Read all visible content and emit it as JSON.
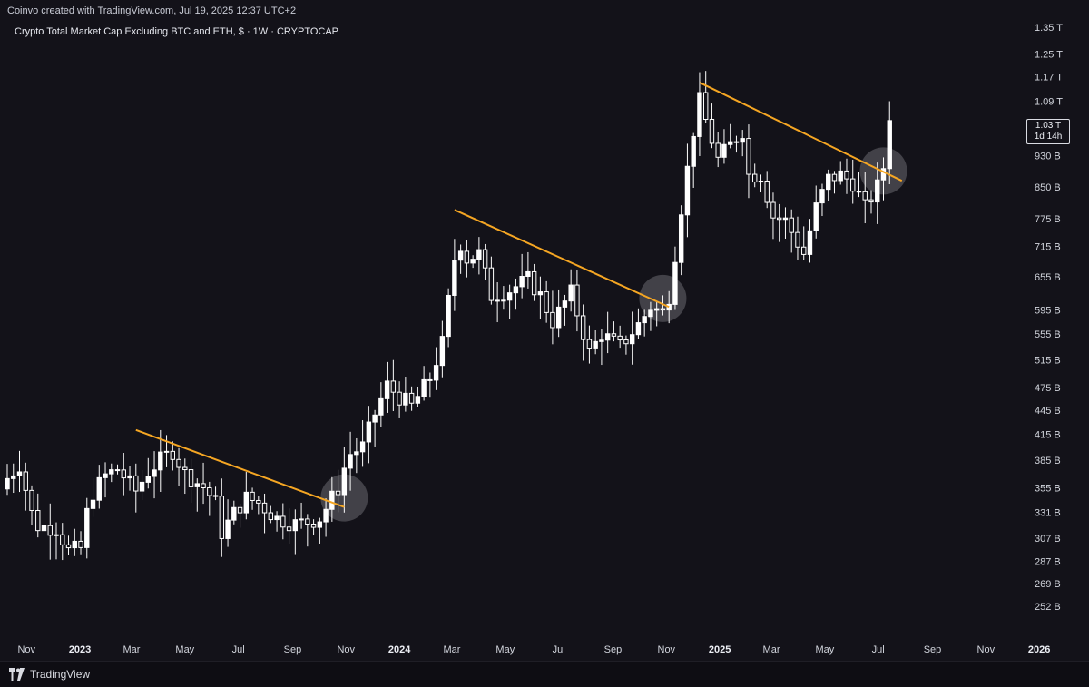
{
  "header": {
    "credit": "Coinvo created with TradingView.com, Jul 19, 2025 12:37 UTC+2",
    "title": "Crypto Total Market Cap Excluding BTC and ETH, $ · 1W · CRYPTOCAP"
  },
  "price_label": {
    "value": "1.03 T",
    "countdown": "1d 14h"
  },
  "footer": {
    "brand": "TradingView"
  },
  "colors": {
    "background": "#131219",
    "candle": "#ffffff",
    "trendline": "#f5a623",
    "highlight": "#9a9aa0"
  },
  "chart_data": {
    "type": "candlestick",
    "title": "Crypto Total Market Cap Excluding BTC and ETH, $ · 1W · CRYPTOCAP",
    "y_scale": "log",
    "y_ticks": [
      {
        "label": "1.35 T",
        "value": 1350
      },
      {
        "label": "1.25 T",
        "value": 1250
      },
      {
        "label": "1.17 T",
        "value": 1170
      },
      {
        "label": "1.09 T",
        "value": 1090
      },
      {
        "label": "930 B",
        "value": 930
      },
      {
        "label": "850 B",
        "value": 850
      },
      {
        "label": "775 B",
        "value": 775
      },
      {
        "label": "715 B",
        "value": 715
      },
      {
        "label": "655 B",
        "value": 655
      },
      {
        "label": "595 B",
        "value": 595
      },
      {
        "label": "555 B",
        "value": 555
      },
      {
        "label": "515 B",
        "value": 515
      },
      {
        "label": "475 B",
        "value": 475
      },
      {
        "label": "445 B",
        "value": 445
      },
      {
        "label": "415 B",
        "value": 415
      },
      {
        "label": "385 B",
        "value": 385
      },
      {
        "label": "355 B",
        "value": 355
      },
      {
        "label": "331 B",
        "value": 331
      },
      {
        "label": "307 B",
        "value": 307
      },
      {
        "label": "287 B",
        "value": 287
      },
      {
        "label": "269 B",
        "value": 269
      },
      {
        "label": "252 B",
        "value": 252
      }
    ],
    "x_ticks": [
      {
        "label": "Nov",
        "date": "2022-11-01",
        "year": false
      },
      {
        "label": "2023",
        "date": "2023-01-01",
        "year": true
      },
      {
        "label": "Mar",
        "date": "2023-03-01",
        "year": false
      },
      {
        "label": "May",
        "date": "2023-05-01",
        "year": false
      },
      {
        "label": "Jul",
        "date": "2023-07-01",
        "year": false
      },
      {
        "label": "Sep",
        "date": "2023-09-01",
        "year": false
      },
      {
        "label": "Nov",
        "date": "2023-11-01",
        "year": false
      },
      {
        "label": "2024",
        "date": "2024-01-01",
        "year": true
      },
      {
        "label": "Mar",
        "date": "2024-03-01",
        "year": false
      },
      {
        "label": "May",
        "date": "2024-05-01",
        "year": false
      },
      {
        "label": "Jul",
        "date": "2024-07-01",
        "year": false
      },
      {
        "label": "Sep",
        "date": "2024-09-01",
        "year": false
      },
      {
        "label": "Nov",
        "date": "2024-11-01",
        "year": false
      },
      {
        "label": "2025",
        "date": "2025-01-01",
        "year": true
      },
      {
        "label": "Mar",
        "date": "2025-03-01",
        "year": false
      },
      {
        "label": "May",
        "date": "2025-05-01",
        "year": false
      },
      {
        "label": "Jul",
        "date": "2025-07-01",
        "year": false
      },
      {
        "label": "Sep",
        "date": "2025-09-01",
        "year": false
      },
      {
        "label": "Nov",
        "date": "2025-11-01",
        "year": false
      },
      {
        "label": "2026",
        "date": "2026-01-01",
        "year": true
      }
    ],
    "x_range": [
      "2022-10-10",
      "2026-01-06"
    ],
    "y_range": [
      245,
      1400
    ],
    "close_anchors": [
      [
        "2022-10-10",
        365
      ],
      [
        "2022-10-24",
        380
      ],
      [
        "2022-11-07",
        330
      ],
      [
        "2022-11-14",
        318
      ],
      [
        "2022-12-05",
        316
      ],
      [
        "2022-12-19",
        296
      ],
      [
        "2023-01-02",
        298
      ],
      [
        "2023-01-09",
        330
      ],
      [
        "2023-01-16",
        350
      ],
      [
        "2023-01-30",
        368
      ],
      [
        "2023-02-13",
        375
      ],
      [
        "2023-03-06",
        352
      ],
      [
        "2023-03-20",
        372
      ],
      [
        "2023-04-03",
        385
      ],
      [
        "2023-04-17",
        395
      ],
      [
        "2023-05-01",
        370
      ],
      [
        "2023-05-22",
        356
      ],
      [
        "2023-06-05",
        340
      ],
      [
        "2023-06-12",
        312
      ],
      [
        "2023-06-26",
        330
      ],
      [
        "2023-07-10",
        345
      ],
      [
        "2023-07-24",
        340
      ],
      [
        "2023-08-14",
        325
      ],
      [
        "2023-09-04",
        320
      ],
      [
        "2023-09-18",
        322
      ],
      [
        "2023-10-02",
        325
      ],
      [
        "2023-10-23",
        355
      ],
      [
        "2023-10-30",
        376
      ],
      [
        "2023-11-06",
        392
      ],
      [
        "2023-11-20",
        400
      ],
      [
        "2023-12-04",
        440
      ],
      [
        "2023-12-18",
        478
      ],
      [
        "2024-01-01",
        462
      ],
      [
        "2024-01-15",
        450
      ],
      [
        "2024-02-05",
        488
      ],
      [
        "2024-02-19",
        540
      ],
      [
        "2024-03-04",
        690
      ],
      [
        "2024-03-11",
        720
      ],
      [
        "2024-03-18",
        690
      ],
      [
        "2024-04-01",
        700
      ],
      [
        "2024-04-15",
        620
      ],
      [
        "2024-05-06",
        630
      ],
      [
        "2024-05-27",
        650
      ],
      [
        "2024-06-10",
        620
      ],
      [
        "2024-06-24",
        575
      ],
      [
        "2024-07-15",
        625
      ],
      [
        "2024-08-05",
        525
      ],
      [
        "2024-08-19",
        555
      ],
      [
        "2024-09-09",
        535
      ],
      [
        "2024-09-30",
        570
      ],
      [
        "2024-10-14",
        600
      ],
      [
        "2024-10-28",
        590
      ],
      [
        "2024-11-04",
        620
      ],
      [
        "2024-11-11",
        700
      ],
      [
        "2024-11-18",
        800
      ],
      [
        "2024-12-02",
        1000
      ],
      [
        "2024-12-09",
        1090
      ],
      [
        "2024-12-16",
        1030
      ],
      [
        "2024-12-30",
        920
      ],
      [
        "2025-01-13",
        960
      ],
      [
        "2025-01-27",
        1000
      ],
      [
        "2025-02-03",
        880
      ],
      [
        "2025-02-17",
        880
      ],
      [
        "2025-03-03",
        780
      ],
      [
        "2025-03-17",
        770
      ],
      [
        "2025-04-07",
        700
      ],
      [
        "2025-04-21",
        800
      ],
      [
        "2025-05-05",
        870
      ],
      [
        "2025-05-19",
        880
      ],
      [
        "2025-06-02",
        860
      ],
      [
        "2025-06-16",
        800
      ],
      [
        "2025-06-30",
        850
      ],
      [
        "2025-07-07",
        900
      ],
      [
        "2025-07-14",
        1030
      ]
    ],
    "trendlines": [
      {
        "from": [
          "2023-03-06",
          420
        ],
        "to": [
          "2023-10-30",
          336
        ]
      },
      {
        "from": [
          "2024-03-04",
          795
        ],
        "to": [
          "2024-11-04",
          600
        ]
      },
      {
        "from": [
          "2024-12-09",
          1150
        ],
        "to": [
          "2025-07-28",
          865
        ]
      }
    ],
    "highlight_circles": [
      {
        "center": [
          "2023-10-30",
          345
        ]
      },
      {
        "center": [
          "2024-10-28",
          615
        ]
      },
      {
        "center": [
          "2025-07-07",
          890
        ]
      }
    ],
    "last_price": {
      "value": 1030,
      "label": "1.03 T"
    }
  }
}
